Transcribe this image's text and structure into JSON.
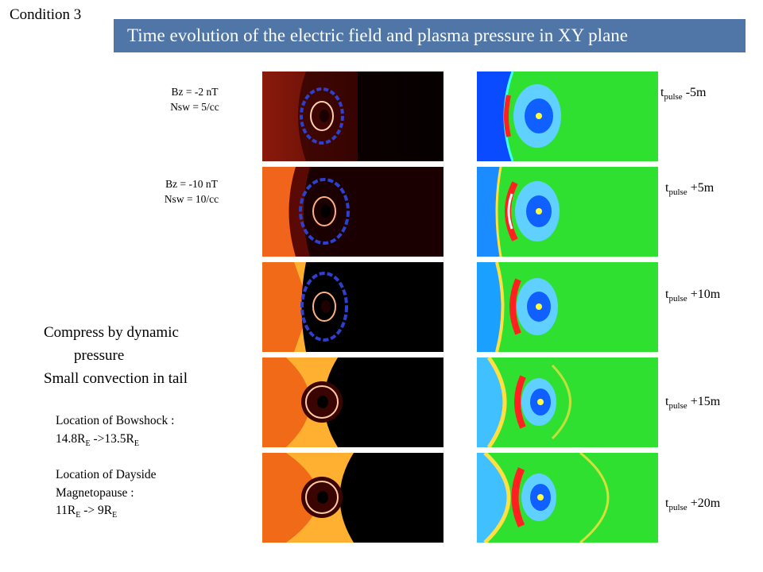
{
  "header": {
    "condition_label": "Condition 3",
    "title": "Time evolution of the electric field and plasma pressure  in XY plane"
  },
  "params": [
    {
      "bz": "Bz = -2 nT",
      "nsw": "Nsw = 5/cc"
    },
    {
      "bz": "Bz = -10 nT",
      "nsw": "Nsw = 10/cc"
    }
  ],
  "time_labels": [
    {
      "t": "t",
      "sub": "pulse",
      "offset": " -5m"
    },
    {
      "t": "t",
      "sub": "pulse",
      "offset": " +5m"
    },
    {
      "t": "t",
      "sub": "pulse",
      "offset": " +10m"
    },
    {
      "t": "t",
      "sub": "pulse",
      "offset": " +15m"
    },
    {
      "t": "t",
      "sub": "pulse",
      "offset": " +20m"
    }
  ],
  "notes": {
    "line1": "Compress by dynamic",
    "line2": "pressure",
    "line3": "Small convection in tail"
  },
  "bowshock": {
    "line1": "Location of Bowshock :",
    "from_val": "14.8R",
    "from_sub": "E",
    "arrow": " ->",
    "to_val": "13.5R",
    "to_sub": "E"
  },
  "magnetopause": {
    "line1": "Location of  Dayside",
    "line2": "Magnetopause :",
    "from_val": "11R",
    "from_sub": "E",
    "arrow": " -> ",
    "to_val": "9R",
    "to_sub": "E"
  },
  "colors": {
    "banner": "#4f76a6",
    "efield_dark": "#1a0000",
    "efield_mid": "#c83a10",
    "efield_bright": "#ff7a20",
    "pressure_green": "#2fe030",
    "pressure_blue": "#0b4bff",
    "pressure_red": "#ff2020"
  }
}
